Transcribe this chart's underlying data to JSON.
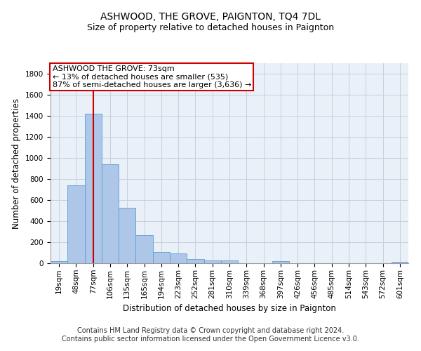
{
  "title": "ASHWOOD, THE GROVE, PAIGNTON, TQ4 7DL",
  "subtitle": "Size of property relative to detached houses in Paignton",
  "xlabel": "Distribution of detached houses by size in Paignton",
  "ylabel": "Number of detached properties",
  "footer_line1": "Contains HM Land Registry data © Crown copyright and database right 2024.",
  "footer_line2": "Contains public sector information licensed under the Open Government Licence v3.0.",
  "categories": [
    "19sqm",
    "48sqm",
    "77sqm",
    "106sqm",
    "135sqm",
    "165sqm",
    "194sqm",
    "223sqm",
    "252sqm",
    "281sqm",
    "310sqm",
    "339sqm",
    "368sqm",
    "397sqm",
    "426sqm",
    "456sqm",
    "485sqm",
    "514sqm",
    "543sqm",
    "572sqm",
    "601sqm"
  ],
  "values": [
    22,
    740,
    1420,
    940,
    530,
    265,
    105,
    95,
    42,
    30,
    28,
    0,
    0,
    17,
    0,
    0,
    0,
    0,
    0,
    0,
    15
  ],
  "bar_color": "#aec6e8",
  "bar_edge_color": "#5a9fd4",
  "annotation_line_index": 2,
  "annotation_box_text_line1": "ASHWOOD THE GROVE: 73sqm",
  "annotation_box_text_line2": "← 13% of detached houses are smaller (535)",
  "annotation_box_text_line3": "87% of semi-detached houses are larger (3,636) →",
  "annotation_line_color": "#cc0000",
  "annotation_box_edge_color": "#cc0000",
  "ylim": [
    0,
    1900
  ],
  "yticks": [
    0,
    200,
    400,
    600,
    800,
    1000,
    1200,
    1400,
    1600,
    1800
  ],
  "background_color": "#ffffff",
  "ax_background_color": "#eaf0f8",
  "grid_color": "#c8d0dc",
  "title_fontsize": 10,
  "subtitle_fontsize": 9,
  "xlabel_fontsize": 8.5,
  "ylabel_fontsize": 8.5,
  "tick_fontsize": 7.5,
  "footer_fontsize": 7,
  "annotation_fontsize": 8
}
